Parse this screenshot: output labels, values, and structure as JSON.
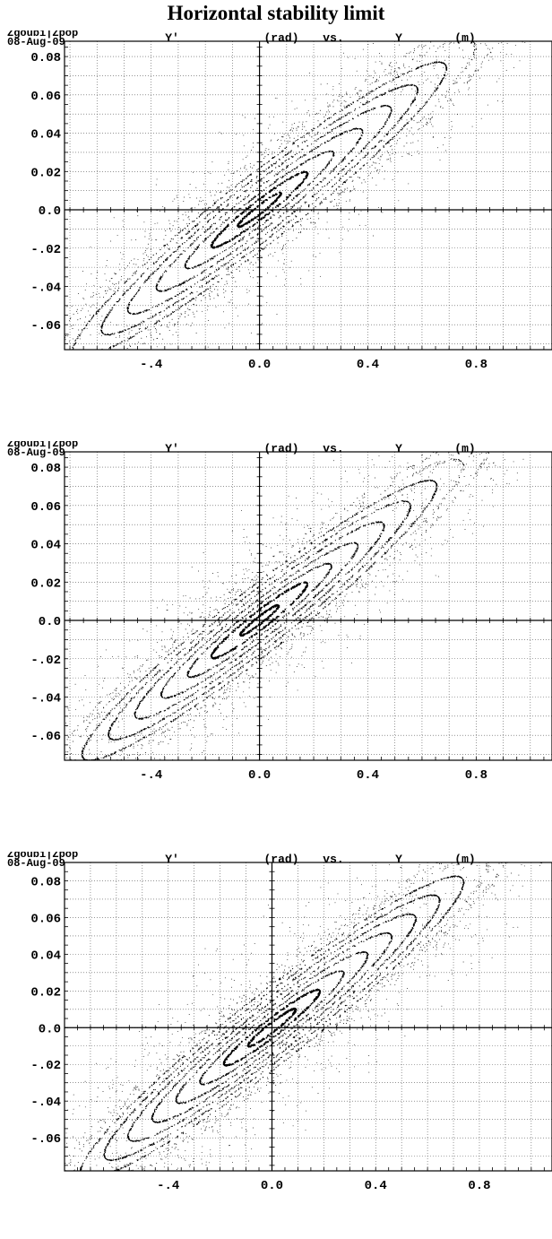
{
  "title": "Horizontal stability limit",
  "chart_data": [
    {
      "type": "scatter",
      "program": "Zgoubi|Zpop",
      "date": "08-Aug-09",
      "axis_title": {
        "y_var": "Y'",
        "y_unit": "(rad)",
        "vs": "vs.",
        "x_var": "Y",
        "x_unit": "(m)"
      },
      "xlabel": "Y (m)",
      "ylabel": "Y' (rad)",
      "xlim": [
        -0.72,
        1.08
      ],
      "ylim": [
        -0.073,
        0.088
      ],
      "x_ticks": [
        {
          "v": -0.4,
          "label": "-.4"
        },
        {
          "v": 0.0,
          "label": "0.0"
        },
        {
          "v": 0.4,
          "label": "0.4"
        },
        {
          "v": 0.8,
          "label": "0.8"
        }
      ],
      "y_ticks": [
        {
          "v": 0.08,
          "label": "0.08"
        },
        {
          "v": 0.06,
          "label": "0.06"
        },
        {
          "v": 0.04,
          "label": "0.04"
        },
        {
          "v": 0.02,
          "label": "0.02"
        },
        {
          "v": 0.0,
          "label": "0.0"
        },
        {
          "v": -0.02,
          "label": "-.02"
        },
        {
          "v": -0.04,
          "label": "-.04"
        },
        {
          "v": -0.06,
          "label": "-.06"
        }
      ],
      "grid": true,
      "ellipse": {
        "angle_deg": 38,
        "aspect": 0.14
      },
      "orbits": [
        0.09,
        0.2,
        0.31,
        0.43,
        0.55,
        0.66,
        0.78,
        0.9,
        1.02
      ],
      "wing": {
        "rx": 1.1,
        "ry": 0.15
      }
    },
    {
      "type": "scatter",
      "program": "Zgoubi|Zpop",
      "date": "08-Aug-09",
      "axis_title": {
        "y_var": "Y'",
        "y_unit": "(rad)",
        "vs": "vs.",
        "x_var": "Y",
        "x_unit": "(m)"
      },
      "xlabel": "Y (m)",
      "ylabel": "Y' (rad)",
      "xlim": [
        -0.72,
        1.08
      ],
      "ylim": [
        -0.073,
        0.088
      ],
      "x_ticks": [
        {
          "v": -0.4,
          "label": "-.4"
        },
        {
          "v": 0.0,
          "label": "0.0"
        },
        {
          "v": 0.4,
          "label": "0.4"
        },
        {
          "v": 0.8,
          "label": "0.8"
        }
      ],
      "y_ticks": [
        {
          "v": 0.08,
          "label": "0.08"
        },
        {
          "v": 0.06,
          "label": "0.06"
        },
        {
          "v": 0.04,
          "label": "0.04"
        },
        {
          "v": 0.02,
          "label": "0.02"
        },
        {
          "v": 0.0,
          "label": "0.0"
        },
        {
          "v": -0.02,
          "label": "-.02"
        },
        {
          "v": -0.04,
          "label": "-.04"
        },
        {
          "v": -0.06,
          "label": "-.06"
        }
      ],
      "grid": true,
      "ellipse": {
        "angle_deg": 38,
        "aspect": 0.14
      },
      "orbits": [
        0.08,
        0.2,
        0.3,
        0.41,
        0.52,
        0.63,
        0.74,
        0.85,
        0.96
      ],
      "wing": {
        "rx": 1.05,
        "ry": 0.15
      }
    },
    {
      "type": "scatter",
      "program": "Zgoubi|Zpop",
      "date": "08-Aug-09",
      "axis_title": {
        "y_var": "Y'",
        "y_unit": "(rad)",
        "vs": "vs.",
        "x_var": "Y",
        "x_unit": "(m)"
      },
      "xlabel": "Y (m)",
      "ylabel": "Y' (rad)",
      "xlim": [
        -0.8,
        1.08
      ],
      "ylim": [
        -0.078,
        0.09
      ],
      "x_ticks": [
        {
          "v": -0.4,
          "label": "-.4"
        },
        {
          "v": 0.0,
          "label": "0.0"
        },
        {
          "v": 0.4,
          "label": "0.4"
        },
        {
          "v": 0.8,
          "label": "0.8"
        }
      ],
      "y_ticks": [
        {
          "v": 0.08,
          "label": "0.08"
        },
        {
          "v": 0.06,
          "label": "0.06"
        },
        {
          "v": 0.04,
          "label": "0.04"
        },
        {
          "v": 0.02,
          "label": "0.02"
        },
        {
          "v": 0.0,
          "label": "0.0"
        },
        {
          "v": -0.02,
          "label": "-.02"
        },
        {
          "v": -0.04,
          "label": "-.04"
        },
        {
          "v": -0.06,
          "label": "-.06"
        }
      ],
      "grid": true,
      "ellipse": {
        "angle_deg": 38,
        "aspect": 0.14
      },
      "orbits": [
        0.1,
        0.2,
        0.3,
        0.4,
        0.5,
        0.6,
        0.7,
        0.8,
        0.9,
        1.0
      ],
      "wing": {
        "rx": 1.08,
        "ry": 0.16
      }
    }
  ]
}
